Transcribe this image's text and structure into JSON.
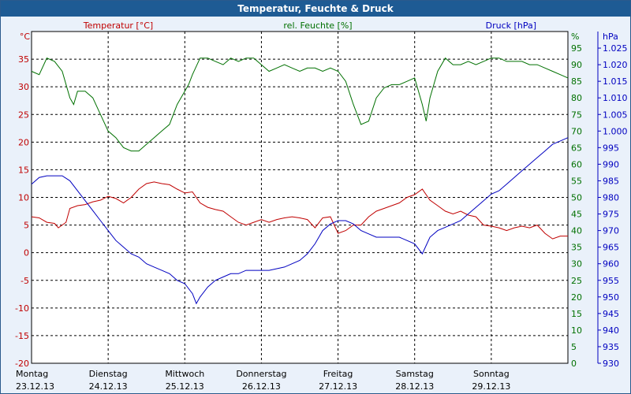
{
  "window": {
    "title": "Temperatur, Feuchte & Druck"
  },
  "colors": {
    "temperature": "#c00000",
    "humidity": "#007000",
    "pressure": "#0000c0",
    "title_bg": "#1e5b94",
    "grid": "#000000"
  },
  "chart_data": {
    "type": "line",
    "grid": true,
    "series_headers": {
      "temperature": "Temperatur [°C]",
      "humidity": "rel. Feuchte [%]",
      "pressure": "Druck [hPa]"
    },
    "axes": {
      "left": {
        "unit": "°C",
        "min": -20,
        "max": 40,
        "ticks": [
          "-20",
          "-15",
          "-10",
          "-5",
          "0",
          "5",
          "10",
          "15",
          "20",
          "25",
          "30",
          "35"
        ]
      },
      "right1": {
        "unit": "%",
        "min": 0,
        "max": 100,
        "ticks": [
          "0",
          "5",
          "10",
          "15",
          "20",
          "25",
          "30",
          "35",
          "40",
          "45",
          "50",
          "55",
          "60",
          "65",
          "70",
          "75",
          "80",
          "85",
          "90",
          "95"
        ]
      },
      "right2": {
        "unit": "hPa",
        "min": 930,
        "max": 1030,
        "ticks": [
          "930",
          "935",
          "940",
          "945",
          "950",
          "955",
          "960",
          "965",
          "970",
          "975",
          "980",
          "985",
          "990",
          "995",
          "1.000",
          "1.005",
          "1.010",
          "1.015",
          "1.020",
          "1.025"
        ]
      }
    },
    "x_days": [
      {
        "day": "Montag",
        "date": "23.12.13"
      },
      {
        "day": "Dienstag",
        "date": "24.12.13"
      },
      {
        "day": "Mittwoch",
        "date": "25.12.13"
      },
      {
        "day": "Donnerstag",
        "date": "26.12.13"
      },
      {
        "day": "Freitag",
        "date": "27.12.13"
      },
      {
        "day": "Samstag",
        "date": "28.12.13"
      },
      {
        "day": "Sonntag",
        "date": "29.12.13"
      }
    ],
    "x_range": [
      0,
      7
    ],
    "series": [
      {
        "key": "temperature",
        "axis": "left",
        "name": "Temperatur [°C]",
        "x": [
          0,
          0.1,
          0.2,
          0.3,
          0.35,
          0.45,
          0.5,
          0.6,
          0.7,
          0.8,
          0.9,
          1.0,
          1.1,
          1.2,
          1.3,
          1.4,
          1.5,
          1.6,
          1.7,
          1.8,
          1.9,
          2.0,
          2.1,
          2.2,
          2.3,
          2.4,
          2.5,
          2.6,
          2.7,
          2.8,
          2.9,
          3.0,
          3.1,
          3.2,
          3.3,
          3.4,
          3.5,
          3.6,
          3.7,
          3.8,
          3.9,
          4.0,
          4.1,
          4.2,
          4.3,
          4.4,
          4.5,
          4.6,
          4.7,
          4.8,
          4.9,
          5.0,
          5.1,
          5.2,
          5.3,
          5.4,
          5.5,
          5.6,
          5.7,
          5.8,
          5.9,
          6.0,
          6.1,
          6.2,
          6.3,
          6.4,
          6.5,
          6.6,
          6.7,
          6.8,
          6.9,
          7.0
        ],
        "y": [
          6.5,
          6.3,
          5.5,
          5.3,
          4.5,
          5.5,
          8,
          8.5,
          8.7,
          9.2,
          9.5,
          10.2,
          9.8,
          9,
          10,
          11.5,
          12.5,
          12.8,
          12.5,
          12.3,
          11.5,
          10.8,
          11,
          9,
          8.2,
          7.8,
          7.5,
          6.5,
          5.5,
          5,
          5.5,
          6,
          5.5,
          6,
          6.3,
          6.5,
          6.3,
          6,
          4.5,
          6.3,
          6.5,
          3.5,
          4,
          5,
          5,
          6.5,
          7.5,
          8,
          8.5,
          9,
          10,
          10.5,
          11.5,
          9.5,
          8.5,
          7.5,
          7,
          7.5,
          6.8,
          6.5,
          5,
          4.8,
          4.5,
          4,
          4.5,
          4.8,
          4.5,
          5,
          3.5,
          2.5,
          3,
          3
        ]
      },
      {
        "key": "humidity",
        "axis": "right1",
        "name": "rel. Feuchte [%]",
        "x": [
          0,
          0.1,
          0.2,
          0.3,
          0.4,
          0.5,
          0.55,
          0.6,
          0.7,
          0.8,
          0.9,
          1.0,
          1.1,
          1.2,
          1.3,
          1.4,
          1.5,
          1.6,
          1.7,
          1.8,
          1.9,
          2.0,
          2.05,
          2.1,
          2.2,
          2.3,
          2.4,
          2.5,
          2.6,
          2.7,
          2.8,
          2.9,
          3.0,
          3.1,
          3.2,
          3.3,
          3.4,
          3.5,
          3.6,
          3.7,
          3.8,
          3.9,
          4.0,
          4.1,
          4.2,
          4.3,
          4.4,
          4.5,
          4.6,
          4.7,
          4.8,
          4.9,
          5.0,
          5.1,
          5.15,
          5.2,
          5.3,
          5.4,
          5.5,
          5.6,
          5.7,
          5.8,
          5.9,
          6.0,
          6.1,
          6.2,
          6.3,
          6.4,
          6.5,
          6.6,
          6.7,
          6.8,
          6.9,
          7.0
        ],
        "y": [
          88,
          87,
          92,
          91,
          88,
          80,
          78,
          82,
          82,
          80,
          75,
          70,
          68,
          65,
          64,
          64,
          66,
          68,
          70,
          72,
          78,
          82,
          84,
          87,
          92,
          92,
          91,
          90,
          92,
          91,
          92,
          92,
          90,
          88,
          89,
          90,
          89,
          88,
          89,
          89,
          88,
          89,
          88,
          85,
          78,
          72,
          73,
          80,
          83,
          84,
          84,
          85,
          86,
          78,
          73,
          80,
          88,
          92,
          90,
          90,
          91,
          90,
          91,
          92,
          92,
          91,
          91,
          91,
          90,
          90,
          89,
          88,
          87,
          86
        ]
      },
      {
        "key": "pressure",
        "axis": "right2",
        "name": "Druck [hPa]",
        "x": [
          0,
          0.1,
          0.2,
          0.3,
          0.4,
          0.5,
          0.6,
          0.7,
          0.8,
          0.9,
          1.0,
          1.1,
          1.2,
          1.3,
          1.4,
          1.5,
          1.6,
          1.7,
          1.8,
          1.9,
          2.0,
          2.1,
          2.15,
          2.2,
          2.3,
          2.4,
          2.5,
          2.6,
          2.7,
          2.8,
          2.9,
          3.0,
          3.1,
          3.2,
          3.3,
          3.4,
          3.5,
          3.6,
          3.7,
          3.8,
          3.9,
          4.0,
          4.1,
          4.2,
          4.3,
          4.4,
          4.5,
          4.6,
          4.7,
          4.8,
          4.9,
          5.0,
          5.1,
          5.2,
          5.3,
          5.4,
          5.5,
          5.6,
          5.7,
          5.8,
          5.9,
          6.0,
          6.1,
          6.2,
          6.3,
          6.4,
          6.5,
          6.6,
          6.7,
          6.8,
          6.9,
          7.0
        ],
        "y": [
          984,
          986,
          986.5,
          986.5,
          986.5,
          985,
          982,
          979,
          976,
          973,
          970,
          967,
          965,
          963,
          962,
          960,
          959,
          958,
          957,
          955,
          954,
          951,
          948,
          950,
          953,
          955,
          956,
          957,
          957,
          958,
          958,
          958,
          958,
          958.5,
          959,
          960,
          961,
          963,
          966,
          970,
          972,
          973,
          973,
          972,
          970,
          969,
          968,
          968,
          968,
          968,
          967,
          966,
          963,
          968,
          970,
          971,
          972,
          973,
          975,
          977,
          979,
          981,
          982,
          984,
          986,
          988,
          990,
          992,
          994,
          996,
          997,
          998
        ]
      }
    ]
  }
}
